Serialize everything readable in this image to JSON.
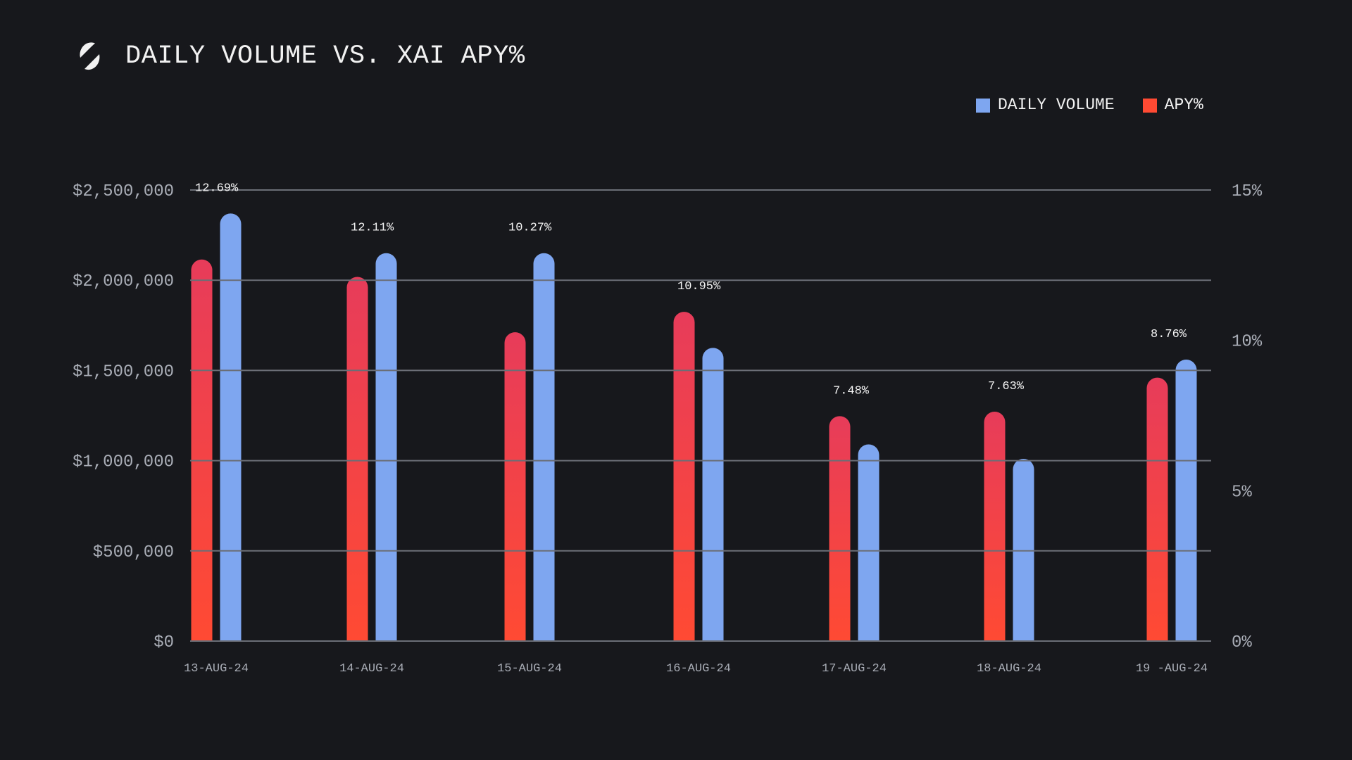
{
  "header": {
    "logo_icon": "slashed-circle-logo-icon",
    "title": "DAILY VOLUME VS. XAI APY%"
  },
  "legend": [
    {
      "label": "DAILY VOLUME",
      "color": "#7ea6f0"
    },
    {
      "label": "APY%",
      "color": "#ff4a33"
    }
  ],
  "colors": {
    "background": "#17181c",
    "volume": "#7ea6f0",
    "apy_top": "#e73c5a",
    "apy_bottom": "#ff4a33",
    "grid": "#6b6e76",
    "axis_text": "#a9adb6"
  },
  "chart_data": {
    "type": "bar",
    "title": "DAILY VOLUME VS. XAI APY%",
    "categories": [
      "13-AUG-24",
      "14-AUG-24",
      "15-AUG-24",
      "16-AUG-24",
      "17-AUG-24",
      "18-AUG-24",
      "19 -AUG-24"
    ],
    "series": [
      {
        "name": "APY%",
        "axis": "right",
        "values": [
          12.69,
          12.11,
          10.27,
          10.95,
          7.48,
          7.63,
          8.76
        ],
        "data_labels": [
          "12.69%",
          "12.11%",
          "10.27%",
          "10.95%",
          "7.48%",
          "7.63%",
          "8.76%"
        ]
      },
      {
        "name": "DAILY VOLUME",
        "axis": "left",
        "values": [
          2370000,
          2150000,
          2150000,
          1625000,
          1090000,
          1010000,
          1560000
        ]
      }
    ],
    "left_axis": {
      "ylim": [
        0,
        2500000
      ],
      "ticks": [
        0,
        500000,
        1000000,
        1500000,
        2000000,
        2500000
      ],
      "tick_labels": [
        "$0",
        "$500,000",
        "$1,000,000",
        "$1,500,000",
        "$2,000,000",
        "$2,500,000"
      ]
    },
    "right_axis": {
      "ylim": [
        0,
        15
      ],
      "ticks": [
        0,
        5,
        10,
        15
      ],
      "tick_labels": [
        "0%",
        "5%",
        "10%",
        "15%"
      ]
    },
    "xlabel": "",
    "ylabel": "",
    "grid": true,
    "legend_position": "top-right"
  }
}
